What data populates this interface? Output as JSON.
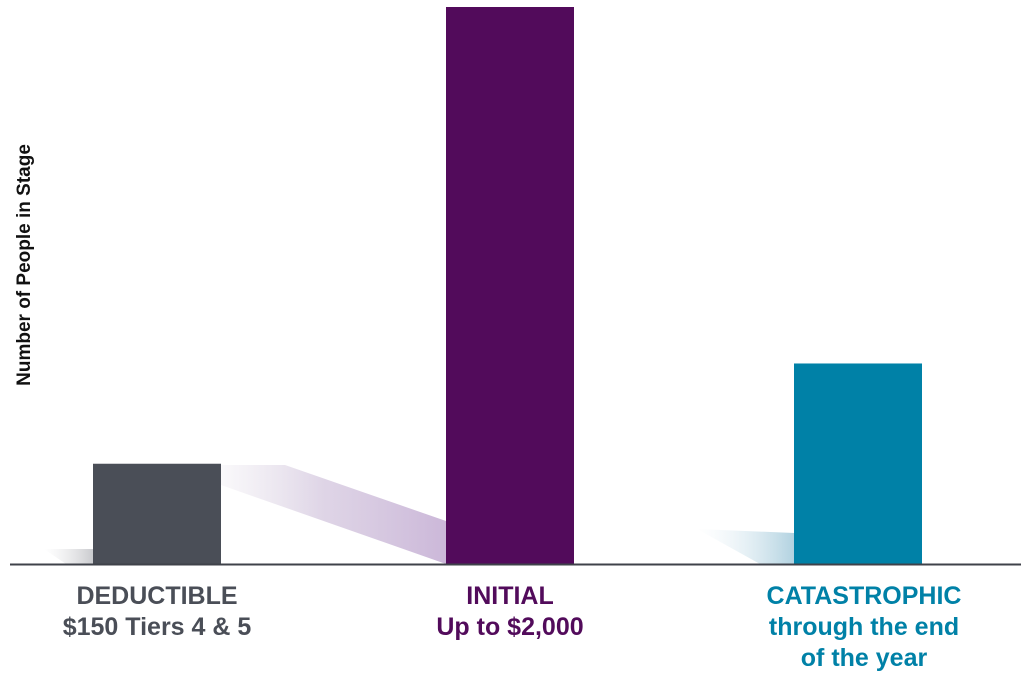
{
  "chart_data": {
    "type": "bar",
    "title": "",
    "ylabel": "Number of People in Stage",
    "xlabel": "",
    "grid": false,
    "legend": "none",
    "categories": [
      "DEDUCTIBLE",
      "INITIAL",
      "CATASTROPHIC"
    ],
    "category_labels": [
      [
        "DEDUCTIBLE",
        "$150 Tiers 4 & 5"
      ],
      [
        "INITIAL",
        "Up to $2,000"
      ],
      [
        "CATASTROPHIC",
        "through the end",
        "of the year"
      ]
    ],
    "values": [
      18,
      100,
      36
    ],
    "value_scale": "relative bar height; no tick values printed",
    "ylim": [
      0,
      100
    ],
    "colors": [
      "#4a4e57",
      "#520b5b",
      "#0081a7"
    ],
    "label_colors": [
      "#4a4e57",
      "#520b5b",
      "#0081a7"
    ],
    "axis_color": "#3f424a"
  }
}
